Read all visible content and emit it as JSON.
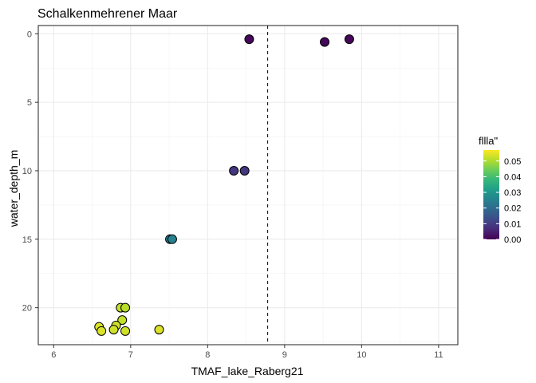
{
  "chart_data": {
    "type": "scatter",
    "title": "Schalkenmehrener Maar",
    "xlabel": "TMAF_lake_Raberg21",
    "ylabel": "water_depth_m",
    "xlim": [
      5.8,
      11.25
    ],
    "ylim": [
      -0.6,
      22.7
    ],
    "y_reversed": true,
    "x_ticks": [
      6,
      7,
      8,
      9,
      10,
      11
    ],
    "y_ticks": [
      0,
      5,
      10,
      15,
      20
    ],
    "grid": true,
    "vline": {
      "x": 8.78,
      "style": "dashed"
    },
    "legend": {
      "title": "fllla\"",
      "position": "right",
      "ticks": [
        0.0,
        0.01,
        0.02,
        0.03,
        0.04,
        0.05
      ],
      "tick_labels": [
        "0.00",
        "0.01",
        "0.02",
        "0.03",
        "0.04",
        "0.05"
      ],
      "range": [
        0.0,
        0.057
      ]
    },
    "colormap": "viridis",
    "colors": [
      "#440154",
      "#482878",
      "#3E4A89",
      "#31688E",
      "#26828E",
      "#1F9E89",
      "#35B779",
      "#6DCD59",
      "#B4DE2C",
      "#FDE725"
    ],
    "points": [
      {
        "x": 8.54,
        "y": 0.4,
        "c": 0.001
      },
      {
        "x": 9.52,
        "y": 0.6,
        "c": 0.001
      },
      {
        "x": 9.84,
        "y": 0.4,
        "c": 0.001
      },
      {
        "x": 8.34,
        "y": 10.0,
        "c": 0.009
      },
      {
        "x": 8.48,
        "y": 10.0,
        "c": 0.009
      },
      {
        "x": 7.51,
        "y": 15.0,
        "c": 0.025
      },
      {
        "x": 7.54,
        "y": 15.0,
        "c": 0.025
      },
      {
        "x": 6.87,
        "y": 20.0,
        "c": 0.052
      },
      {
        "x": 6.93,
        "y": 20.0,
        "c": 0.051
      },
      {
        "x": 6.89,
        "y": 20.9,
        "c": 0.052
      },
      {
        "x": 6.81,
        "y": 21.3,
        "c": 0.053
      },
      {
        "x": 6.59,
        "y": 21.4,
        "c": 0.054
      },
      {
        "x": 6.78,
        "y": 21.6,
        "c": 0.053
      },
      {
        "x": 6.62,
        "y": 21.7,
        "c": 0.054
      },
      {
        "x": 6.93,
        "y": 21.7,
        "c": 0.053
      },
      {
        "x": 7.37,
        "y": 21.6,
        "c": 0.054
      }
    ]
  }
}
